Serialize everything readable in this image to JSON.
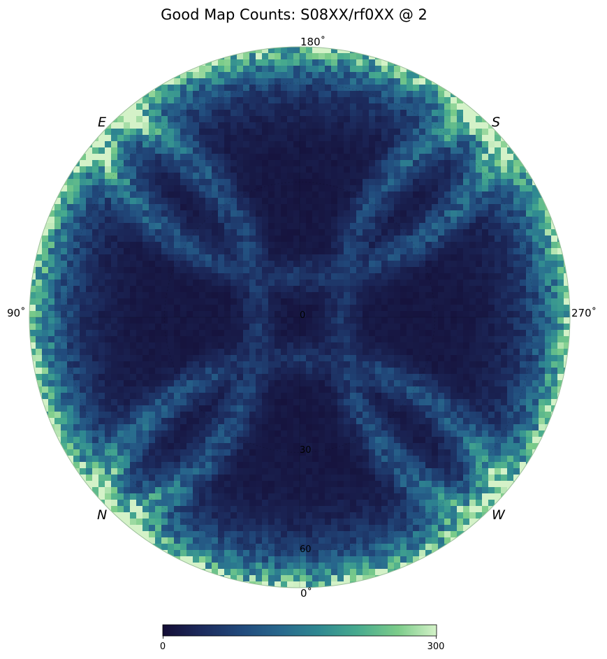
{
  "chart_data": {
    "type": "heatmap",
    "projection": "orthographic",
    "title": "Good Map Counts: S08XX/rf0XX @ 2",
    "colormap": [
      "#140d35",
      "#1c2a5c",
      "#214a7c",
      "#28688d",
      "#2f8891",
      "#47aa8e",
      "#7ccc8a",
      "#d4f2c8"
    ],
    "color_range": [
      0,
      300
    ],
    "colorbar": {
      "ticks": [
        "0",
        "300"
      ],
      "placement": "bottom"
    },
    "azimuth_labels": {
      "top": "180$^\\circ$",
      "bottom": "0$^\\circ$",
      "left": "90$^\\circ$",
      "right": "270$^\\circ$"
    },
    "azimuth_display": {
      "top": "180˚",
      "bottom": "0˚",
      "left": "90˚",
      "right": "270˚"
    },
    "direction_labels": {
      "upper_left": "E",
      "upper_right": "S",
      "lower_left": "N",
      "lower_right": "W"
    },
    "radial_labels": [
      "0",
      "30",
      "60"
    ],
    "grid": true,
    "pattern_summary": {
      "center_count_approx": 15,
      "edge_ring_count_approx": 250,
      "arc_band_count_approx": 90
    }
  }
}
